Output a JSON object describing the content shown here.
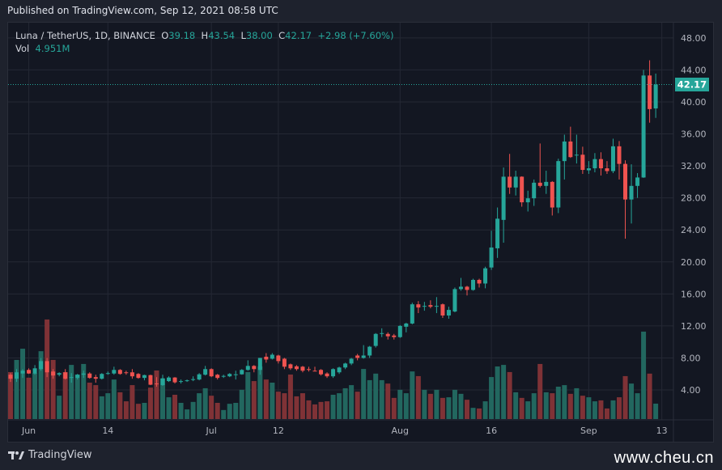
{
  "published": "Published on TradingView.com, Sep 12, 2021 08:58 UTC",
  "legend": {
    "symbol": "Luna / TetherUS, 1D, BINANCE",
    "o_label": "O",
    "o": "39.18",
    "h_label": "H",
    "h": "43.54",
    "l_label": "L",
    "l": "38.00",
    "c_label": "C",
    "c": "42.17",
    "change": "+2.98 (+7.60%)",
    "vol_label": "Vol",
    "vol": "4.951M"
  },
  "last_price_label": "42.17",
  "footer": {
    "brand": "TradingView",
    "watermark": "www.cheu.cn"
  },
  "colors": {
    "up": "#26a69a",
    "down": "#ef5350",
    "up_vol": "#22675f",
    "down_vol": "#7f3236",
    "bg": "#131722",
    "grid": "#242834"
  },
  "chart_data": {
    "type": "candlestick",
    "title": "Luna / TetherUS, 1D, BINANCE",
    "ylim": [
      0,
      50
    ],
    "y_ticks": [
      "4.00",
      "8.00",
      "12.00",
      "16.00",
      "20.00",
      "24.00",
      "28.00",
      "32.00",
      "36.00",
      "40.00",
      "44.00",
      "48.00"
    ],
    "x_ticks": [
      {
        "label": "Jun",
        "index": 3
      },
      {
        "label": "14",
        "index": 16
      },
      {
        "label": "Jul",
        "index": 33
      },
      {
        "label": "12",
        "index": 44
      },
      {
        "label": "Aug",
        "index": 64
      },
      {
        "label": "16",
        "index": 79
      },
      {
        "label": "Sep",
        "index": 95
      },
      {
        "label": "13",
        "index": 107
      }
    ],
    "volume_unit": "M",
    "bars_ohlcv": [
      [
        5.9,
        6.1,
        5.0,
        5.4,
        15.1
      ],
      [
        5.4,
        6.6,
        5.0,
        6.2,
        19.0
      ],
      [
        6.05,
        6.6,
        5.5,
        6.4,
        22.6
      ],
      [
        6.5,
        6.7,
        6.0,
        6.05,
        13.3
      ],
      [
        6.05,
        7.1,
        5.9,
        6.7,
        14.8
      ],
      [
        6.6,
        8.0,
        6.4,
        7.6,
        21.8
      ],
      [
        7.6,
        8.0,
        5.6,
        6.2,
        32.0
      ],
      [
        6.3,
        6.6,
        5.4,
        5.8,
        19.0
      ],
      [
        5.9,
        6.2,
        5.7,
        6.1,
        7.5
      ],
      [
        6.2,
        6.6,
        5.3,
        5.4,
        15.1
      ],
      [
        5.5,
        6.1,
        4.9,
        5.6,
        17.4
      ],
      [
        5.5,
        6.0,
        5.3,
        5.9,
        14.3
      ],
      [
        5.9,
        6.4,
        5.5,
        6.05,
        17.7
      ],
      [
        6.05,
        6.2,
        5.4,
        5.5,
        11.7
      ],
      [
        5.6,
        5.9,
        4.9,
        5.4,
        10.9
      ],
      [
        5.4,
        6.1,
        5.3,
        6.0,
        7.3
      ],
      [
        6.0,
        6.3,
        5.9,
        6.1,
        8.3
      ],
      [
        6.05,
        6.9,
        5.9,
        6.5,
        12.7
      ],
      [
        6.5,
        6.6,
        5.9,
        6.0,
        8.6
      ],
      [
        6.2,
        6.4,
        5.9,
        6.15,
        5.7
      ],
      [
        6.2,
        6.6,
        5.4,
        5.7,
        10.9
      ],
      [
        6.0,
        6.1,
        5.4,
        5.5,
        4.9
      ],
      [
        5.5,
        5.9,
        5.2,
        5.85,
        5.2
      ],
      [
        5.85,
        5.9,
        4.6,
        4.65,
        10.1
      ],
      [
        4.8,
        5.6,
        4.4,
        4.7,
        15.6
      ],
      [
        4.6,
        5.9,
        4.5,
        5.45,
        13.0
      ],
      [
        5.1,
        5.7,
        5.0,
        5.55,
        7.0
      ],
      [
        5.55,
        5.6,
        4.8,
        4.95,
        7.8
      ],
      [
        5.0,
        5.3,
        4.8,
        5.1,
        5.2
      ],
      [
        5.1,
        5.3,
        5.0,
        5.2,
        3.1
      ],
      [
        5.25,
        5.7,
        5.1,
        5.35,
        5.5
      ],
      [
        5.3,
        6.1,
        5.2,
        5.95,
        8.3
      ],
      [
        5.9,
        7.0,
        5.8,
        6.6,
        9.9
      ],
      [
        6.6,
        6.7,
        5.6,
        5.7,
        7.5
      ],
      [
        5.9,
        6.0,
        5.3,
        5.5,
        5.2
      ],
      [
        5.65,
        5.9,
        5.5,
        5.75,
        2.9
      ],
      [
        5.7,
        6.1,
        5.6,
        6.0,
        4.9
      ],
      [
        5.9,
        6.4,
        5.3,
        5.95,
        5.2
      ],
      [
        5.95,
        6.6,
        5.9,
        6.5,
        9.4
      ],
      [
        6.5,
        7.7,
        6.4,
        7.0,
        15.1
      ],
      [
        7.0,
        7.1,
        6.2,
        6.6,
        12.2
      ],
      [
        6.5,
        8.0,
        5.9,
        8.0,
        16.9
      ],
      [
        8.15,
        8.6,
        7.4,
        7.8,
        12.7
      ],
      [
        7.9,
        8.6,
        7.8,
        8.4,
        11.7
      ],
      [
        8.3,
        8.4,
        7.3,
        7.6,
        8.8
      ],
      [
        7.9,
        8.0,
        6.6,
        6.9,
        8.3
      ],
      [
        7.2,
        7.3,
        6.5,
        6.7,
        14.3
      ],
      [
        6.95,
        7.1,
        6.4,
        6.6,
        7.3
      ],
      [
        6.9,
        7.0,
        6.2,
        6.4,
        8.3
      ],
      [
        6.6,
        6.9,
        6.3,
        6.55,
        6.0
      ],
      [
        6.4,
        6.9,
        6.35,
        6.38,
        4.7
      ],
      [
        6.5,
        6.6,
        5.8,
        5.95,
        5.5
      ],
      [
        6.05,
        6.2,
        5.5,
        5.7,
        5.7
      ],
      [
        5.7,
        6.7,
        5.5,
        6.6,
        7.8
      ],
      [
        6.2,
        6.9,
        6.0,
        6.8,
        8.3
      ],
      [
        6.8,
        7.4,
        6.6,
        7.3,
        9.9
      ],
      [
        7.3,
        8.0,
        7.1,
        7.9,
        10.9
      ],
      [
        8.3,
        8.5,
        7.7,
        8.0,
        8.8
      ],
      [
        8.0,
        9.6,
        7.9,
        8.3,
        16.1
      ],
      [
        8.3,
        9.5,
        8.0,
        9.4,
        12.5
      ],
      [
        9.5,
        11.1,
        9.3,
        11.0,
        14.6
      ],
      [
        11.0,
        11.7,
        10.6,
        11.1,
        12.5
      ],
      [
        11.0,
        11.2,
        10.3,
        10.7,
        11.4
      ],
      [
        10.8,
        11.0,
        10.3,
        10.6,
        6.8
      ],
      [
        10.6,
        12.1,
        10.5,
        12.0,
        9.4
      ],
      [
        11.9,
        12.4,
        11.2,
        12.3,
        8.3
      ],
      [
        12.3,
        14.9,
        12.2,
        14.7,
        15.3
      ],
      [
        14.7,
        15.1,
        13.6,
        14.3,
        13.8
      ],
      [
        14.4,
        15.0,
        13.9,
        14.5,
        9.4
      ],
      [
        14.6,
        15.2,
        14.2,
        14.4,
        8.1
      ],
      [
        14.4,
        15.6,
        13.6,
        14.5,
        9.4
      ],
      [
        14.7,
        14.8,
        13.0,
        13.3,
        6.8
      ],
      [
        13.3,
        14.4,
        12.9,
        14.0,
        7.0
      ],
      [
        13.8,
        16.8,
        13.7,
        16.6,
        9.4
      ],
      [
        16.6,
        18.0,
        16.4,
        16.9,
        8.1
      ],
      [
        16.9,
        17.0,
        15.8,
        16.5,
        6.2
      ],
      [
        16.5,
        17.9,
        16.4,
        17.75,
        3.6
      ],
      [
        17.75,
        17.9,
        16.8,
        17.3,
        3.4
      ],
      [
        17.3,
        19.4,
        16.7,
        19.2,
        5.7
      ],
      [
        19.3,
        23.9,
        19.0,
        21.8,
        13.5
      ],
      [
        21.7,
        26.8,
        20.5,
        25.4,
        16.9
      ],
      [
        25.25,
        31.8,
        22.4,
        30.65,
        17.4
      ],
      [
        30.65,
        33.5,
        28.5,
        29.3,
        15.1
      ],
      [
        29.3,
        31.4,
        28.3,
        30.65,
        8.6
      ],
      [
        30.65,
        30.7,
        26.9,
        27.45,
        6.8
      ],
      [
        27.45,
        28.9,
        26.3,
        27.95,
        5.7
      ],
      [
        27.95,
        30.3,
        27.0,
        29.9,
        8.3
      ],
      [
        29.9,
        34.8,
        29.3,
        29.5,
        17.7
      ],
      [
        29.5,
        31.4,
        28.5,
        30.0,
        8.6
      ],
      [
        30.0,
        30.1,
        25.8,
        26.8,
        8.3
      ],
      [
        26.8,
        32.9,
        26.1,
        32.6,
        10.4
      ],
      [
        32.6,
        35.9,
        30.3,
        35.05,
        10.9
      ],
      [
        35.05,
        36.9,
        33.0,
        33.1,
        8.1
      ],
      [
        33.3,
        35.9,
        32.3,
        33.4,
        9.9
      ],
      [
        33.4,
        34.4,
        31.0,
        31.5,
        7.5
      ],
      [
        31.45,
        32.6,
        31.0,
        31.7,
        7.0
      ],
      [
        31.7,
        33.6,
        31.2,
        32.85,
        5.7
      ],
      [
        32.85,
        33.7,
        30.8,
        31.7,
        6.0
      ],
      [
        31.7,
        32.6,
        31.0,
        31.35,
        3.4
      ],
      [
        31.35,
        35.4,
        31.1,
        34.45,
        6.0
      ],
      [
        34.45,
        35.1,
        30.3,
        32.25,
        7.0
      ],
      [
        32.25,
        32.7,
        22.9,
        27.8,
        13.8
      ],
      [
        27.8,
        32.2,
        24.8,
        29.5,
        11.4
      ],
      [
        29.5,
        31.1,
        28.0,
        30.55,
        8.3
      ],
      [
        30.55,
        44.0,
        30.5,
        43.3,
        28.1
      ],
      [
        43.3,
        45.2,
        37.4,
        39.1,
        14.6
      ],
      [
        39.18,
        43.54,
        38.0,
        42.17,
        4.951
      ]
    ]
  }
}
